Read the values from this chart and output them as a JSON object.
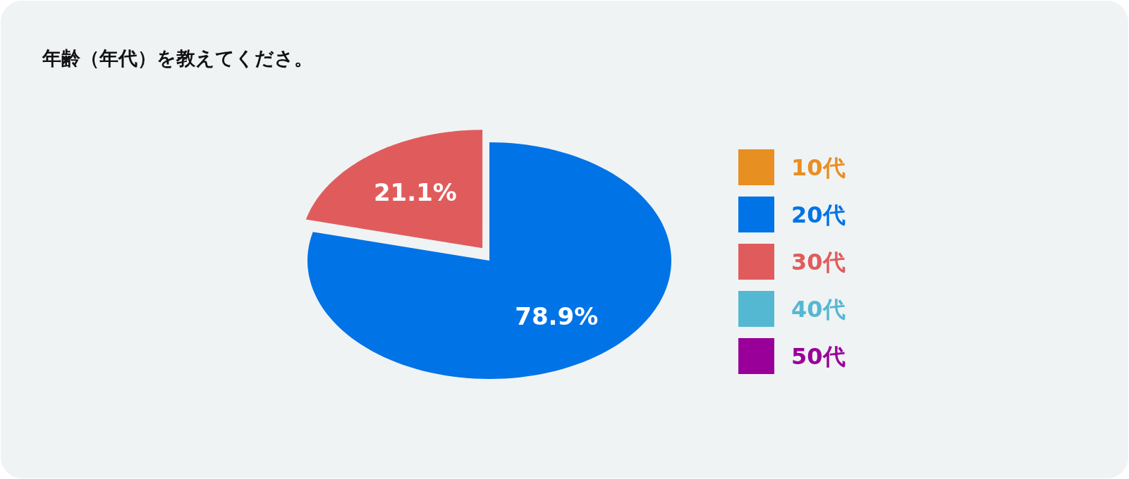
{
  "chart_data": {
    "type": "pie",
    "title": "年齢（年代）を教えてくださ。",
    "categories": [
      "10代",
      "20代",
      "30代",
      "40代",
      "50代"
    ],
    "values": [
      0,
      78.9,
      21.1,
      0,
      0
    ],
    "colors": [
      "#e88f22",
      "#0073e6",
      "#e05c5c",
      "#55b8d2",
      "#990099"
    ],
    "value_labels": [
      null,
      "78.9%",
      "21.1%",
      null,
      null
    ],
    "legend": "right"
  }
}
